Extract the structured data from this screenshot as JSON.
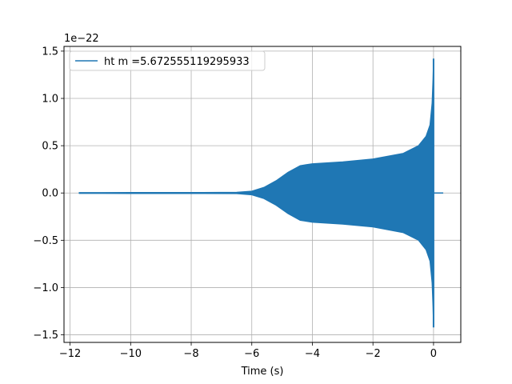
{
  "chart_data": {
    "type": "line",
    "title": "",
    "xlabel": "Time (s)",
    "ylabel": "",
    "y_offset_label": "1e−22",
    "xlim": [
      -12.2,
      0.9
    ],
    "ylim": [
      -1.58,
      1.55
    ],
    "xticks": [
      -12,
      -10,
      -8,
      -6,
      -4,
      -2,
      0
    ],
    "xtick_labels": [
      "−12",
      "−10",
      "−8",
      "−6",
      "−4",
      "−2",
      "0"
    ],
    "yticks": [
      -1.5,
      -1.0,
      -0.5,
      0.0,
      0.5,
      1.0,
      1.5
    ],
    "ytick_labels": [
      "−1.5",
      "−1.0",
      "−0.5",
      "0.0",
      "0.5",
      "1.0",
      "1.5"
    ],
    "grid": true,
    "legend_position": "top-left",
    "series": [
      {
        "name": "ht m =5.672555119295933",
        "color": "#1f77b4",
        "x_range": [
          -11.7,
          0.32
        ],
        "envelope": {
          "x": [
            -11.7,
            -10,
            -8,
            -6.5,
            -6.0,
            -5.6,
            -5.2,
            -4.8,
            -4.4,
            -4.0,
            -3.0,
            -2.0,
            -1.0,
            -0.5,
            -0.25,
            -0.12,
            -0.05,
            -0.02,
            0.0
          ],
          "amplitude": [
            0.005,
            0.006,
            0.006,
            0.008,
            0.02,
            0.06,
            0.13,
            0.22,
            0.29,
            0.31,
            0.33,
            0.36,
            0.42,
            0.5,
            0.6,
            0.72,
            0.95,
            1.2,
            1.42
          ]
        },
        "min_at_peak": -1.42,
        "ringdown_end": 0.32
      }
    ]
  }
}
